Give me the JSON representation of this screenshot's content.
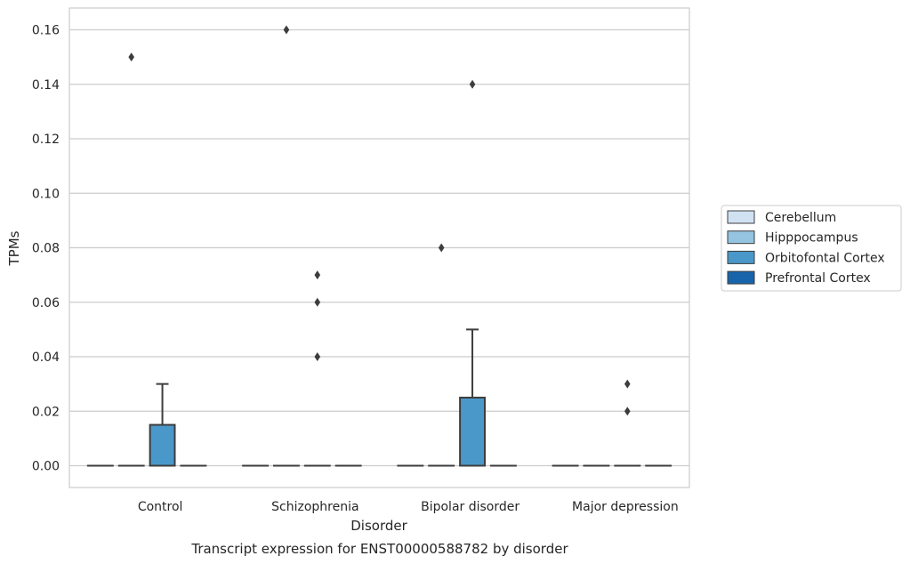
{
  "chart_data": {
    "type": "box",
    "title": "",
    "caption": "Transcript expression for ENST00000588782 by disorder",
    "xlabel": "Disorder",
    "ylabel": "TPMs",
    "ylim": [
      -0.008,
      0.168
    ],
    "yticks": [
      "0.00",
      "0.02",
      "0.04",
      "0.06",
      "0.08",
      "0.10",
      "0.12",
      "0.14",
      "0.16"
    ],
    "grid": true,
    "legend_position": "right",
    "categories": [
      "Control",
      "Schizophrenia",
      "Bipolar disorder",
      "Major depression"
    ],
    "series": [
      {
        "name": "Cerebellum",
        "color": "#d0e1f2",
        "boxes": [
          {
            "q1": 0,
            "median": 0,
            "q3": 0,
            "whisker_low": 0,
            "whisker_high": 0,
            "outliers": []
          },
          {
            "q1": 0,
            "median": 0,
            "q3": 0,
            "whisker_low": 0,
            "whisker_high": 0,
            "outliers": []
          },
          {
            "q1": 0,
            "median": 0,
            "q3": 0,
            "whisker_low": 0,
            "whisker_high": 0,
            "outliers": []
          },
          {
            "q1": 0,
            "median": 0,
            "q3": 0,
            "whisker_low": 0,
            "whisker_high": 0,
            "outliers": []
          }
        ]
      },
      {
        "name": "Hipppocampus",
        "color": "#94c4df",
        "boxes": [
          {
            "q1": 0,
            "median": 0,
            "q3": 0,
            "whisker_low": 0,
            "whisker_high": 0,
            "outliers": [
              0.15
            ]
          },
          {
            "q1": 0,
            "median": 0,
            "q3": 0,
            "whisker_low": 0,
            "whisker_high": 0,
            "outliers": [
              0.16
            ]
          },
          {
            "q1": 0,
            "median": 0,
            "q3": 0,
            "whisker_low": 0,
            "whisker_high": 0,
            "outliers": [
              0.08
            ]
          },
          {
            "q1": 0,
            "median": 0,
            "q3": 0,
            "whisker_low": 0,
            "whisker_high": 0,
            "outliers": []
          }
        ]
      },
      {
        "name": "Orbitofontal Cortex",
        "color": "#4a98c9",
        "boxes": [
          {
            "q1": 0,
            "median": 0,
            "q3": 0.015,
            "whisker_low": 0,
            "whisker_high": 0.03,
            "outliers": []
          },
          {
            "q1": 0,
            "median": 0,
            "q3": 0,
            "whisker_low": 0,
            "whisker_high": 0,
            "outliers": [
              0.04,
              0.06,
              0.07
            ]
          },
          {
            "q1": 0,
            "median": 0,
            "q3": 0.025,
            "whisker_low": 0,
            "whisker_high": 0.05,
            "outliers": [
              0.14
            ]
          },
          {
            "q1": 0,
            "median": 0,
            "q3": 0,
            "whisker_low": 0,
            "whisker_high": 0,
            "outliers": [
              0.02,
              0.03
            ]
          }
        ]
      },
      {
        "name": "Prefrontal Cortex",
        "color": "#1764ab",
        "boxes": [
          {
            "q1": 0,
            "median": 0,
            "q3": 0,
            "whisker_low": 0,
            "whisker_high": 0,
            "outliers": []
          },
          {
            "q1": 0,
            "median": 0,
            "q3": 0,
            "whisker_low": 0,
            "whisker_high": 0,
            "outliers": []
          },
          {
            "q1": 0,
            "median": 0,
            "q3": 0,
            "whisker_low": 0,
            "whisker_high": 0,
            "outliers": []
          },
          {
            "q1": 0,
            "median": 0,
            "q3": 0,
            "whisker_low": 0,
            "whisker_high": 0,
            "outliers": []
          }
        ]
      }
    ]
  }
}
